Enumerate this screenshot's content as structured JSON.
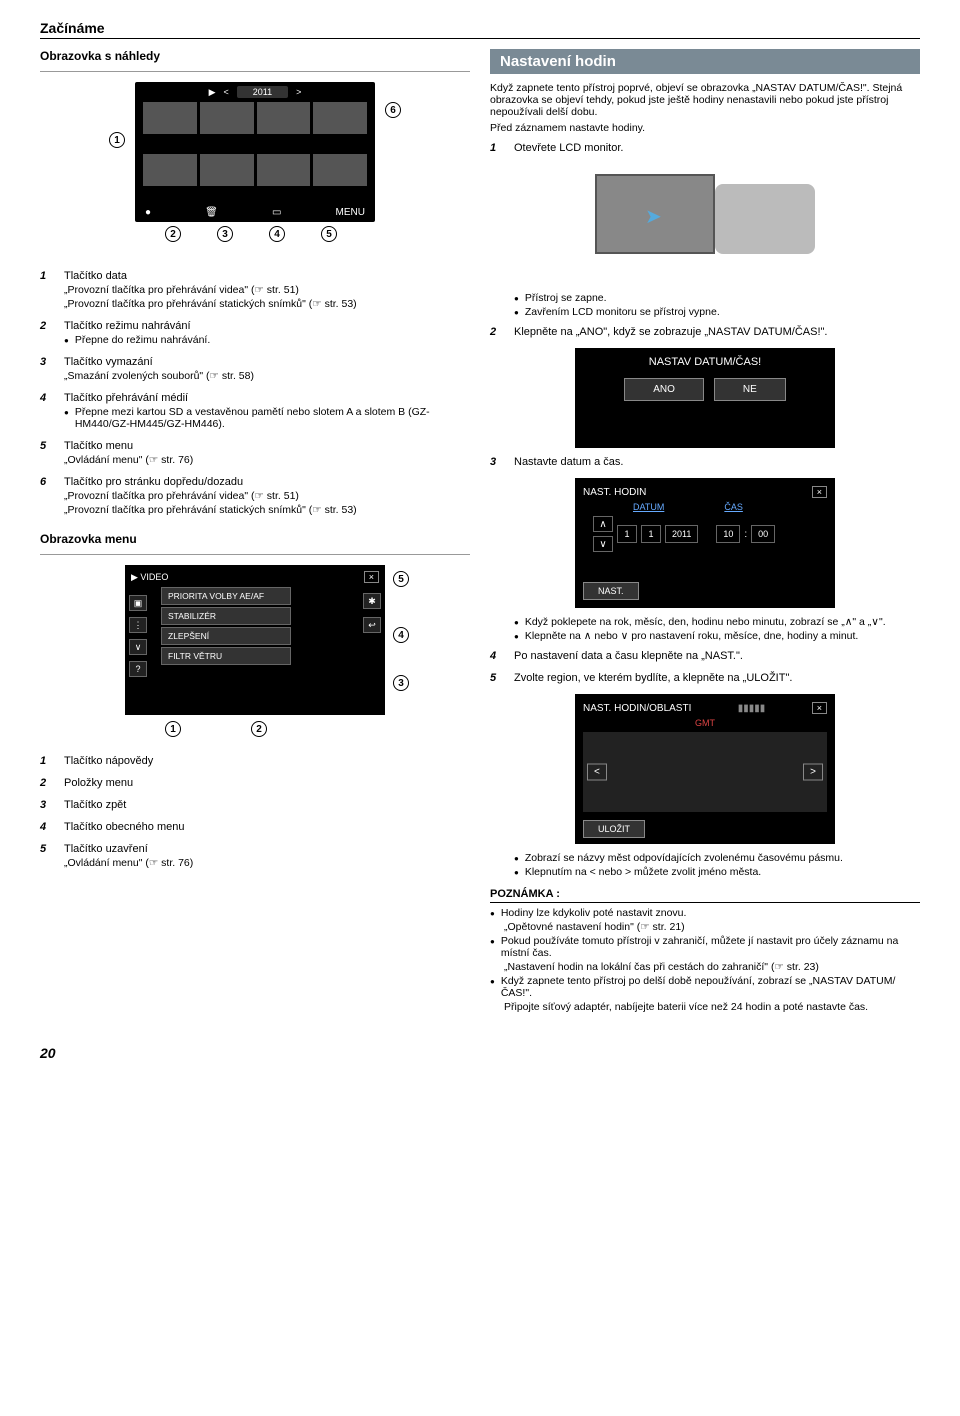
{
  "page": {
    "header": "Začínáme",
    "number": "20"
  },
  "left": {
    "thumbs_title": "Obrazovka s náhledy",
    "year": "2011",
    "menu_label": "MENU",
    "callouts": [
      "1",
      "2",
      "3",
      "4",
      "5",
      "6"
    ],
    "items": [
      {
        "n": "1",
        "title": "Tlačítko data",
        "lines": [
          "„Provozní tlačítka pro přehrávání videa\" (☞ str. 51)",
          "„Provozní tlačítka pro přehrávání statických snímků\" (☞ str. 53)"
        ]
      },
      {
        "n": "2",
        "title": "Tlačítko režimu nahrávání",
        "bullets": [
          "Přepne do režimu nahrávání."
        ]
      },
      {
        "n": "3",
        "title": "Tlačítko vymazání",
        "lines": [
          "„Smazání zvolených souborů\" (☞ str. 58)"
        ]
      },
      {
        "n": "4",
        "title": "Tlačítko přehrávání médií",
        "bullets": [
          "Přepne mezi kartou SD a vestavěnou pamětí nebo slotem A a slotem B (GZ-HM440/GZ-HM445/GZ-HM446)."
        ]
      },
      {
        "n": "5",
        "title": "Tlačítko menu",
        "lines": [
          "„Ovládání menu\" (☞ str. 76)"
        ]
      },
      {
        "n": "6",
        "title": "Tlačítko pro stránku dopředu/dozadu",
        "lines": [
          "„Provozní tlačítka pro přehrávání videa\" (☞ str. 51)",
          "„Provozní tlačítka pro přehrávání statických snímků\" (☞ str. 53)"
        ]
      }
    ],
    "menu_title": "Obrazovka menu",
    "menu_screen": {
      "top": "VIDEO",
      "items": [
        "PRIORITA VOLBY AE/AF",
        "STABILIZÉR",
        "ZLEPŠENÍ",
        "FILTR VĚTRU"
      ],
      "left_icons": [
        "▣",
        "⋮",
        "∨",
        "?"
      ]
    },
    "menu_callouts": [
      "1",
      "2",
      "3",
      "4",
      "5"
    ],
    "menu_list": [
      {
        "n": "1",
        "title": "Tlačítko nápovědy"
      },
      {
        "n": "2",
        "title": "Položky menu"
      },
      {
        "n": "3",
        "title": "Tlačítko zpět"
      },
      {
        "n": "4",
        "title": "Tlačítko obecného menu"
      },
      {
        "n": "5",
        "title": "Tlačítko uzavření",
        "lines": [
          "„Ovládání menu\" (☞ str. 76)"
        ]
      }
    ]
  },
  "right": {
    "title": "Nastavení hodin",
    "intro": "Když zapnete tento přístroj poprvé, objeví se obrazovka „NASTAV DATUM/ČAS!\". Stejná obrazovka se objeví tehdy, pokud jste ještě hodiny nenastavili nebo pokud jste přístroj nepoužívali delší dobu.",
    "intro2": "Před záznamem nastavte hodiny.",
    "steps": [
      {
        "n": "1",
        "title": "Otevřete LCD monitor.",
        "after_bullets": [
          "Přístroj se zapne.",
          "Zavřením LCD monitoru se přístroj vypne."
        ]
      },
      {
        "n": "2",
        "title": "Klepněte na „ANO\", když se zobrazuje „NASTAV DATUM/ČAS!\"."
      },
      {
        "n": "3",
        "title": "Nastavte datum a čas."
      },
      {
        "n": "4",
        "title": "Po nastavení data a času klepněte na „NAST.\"."
      },
      {
        "n": "5",
        "title": "Zvolte region, ve kterém bydlíte, a klepněte na „ULOŽIT\"."
      }
    ],
    "dlg1": {
      "title": "NASTAV DATUM/ČAS!",
      "yes": "ANO",
      "no": "NE"
    },
    "dlg2": {
      "title": "NAST. HODIN",
      "close": "×",
      "date_label": "DATUM",
      "time_label": "ČAS",
      "d1": "1",
      "d2": "1",
      "d3": "2011",
      "t1": "10",
      "t2": "00",
      "nast": "NAST."
    },
    "step3_bullets": [
      "Když poklepete na rok, měsíc, den, hodinu nebo minutu, zobrazí se „∧\" a „∨\".",
      "Klepněte na ∧ nebo ∨ pro nastavení roku, měsíce, dne, hodiny a minut."
    ],
    "dlg3": {
      "title": "NAST. HODIN/OBLASTI",
      "gmt": "GMT",
      "save": "ULOŽIT",
      "close": "×"
    },
    "step5_bullets": [
      "Zobrazí se názvy měst odpovídajících zvolenému časovému pásmu.",
      "Klepnutím na < nebo > můžete zvolit jméno města."
    ],
    "note_label": "POZNÁMKA :",
    "notes": [
      "Hodiny lze kdykoliv poté nastavit znovu.",
      "„Opětovné nastavení hodin\" (☞ str. 21)",
      "Pokud používáte tomuto přístroji v zahraničí, můžete jí nastavit pro účely záznamu na místní čas.",
      "„Nastavení hodin na lokální čas při cestách do zahraničí\" (☞ str. 23)",
      "Když zapnete tento přístroj po delší době nepoužívání, zobrazí se „NASTAV DATUM/ČAS!\".",
      "Připojte síťový adaptér, nabíjejte baterii více než 24 hodin a poté nastavte čas."
    ]
  }
}
